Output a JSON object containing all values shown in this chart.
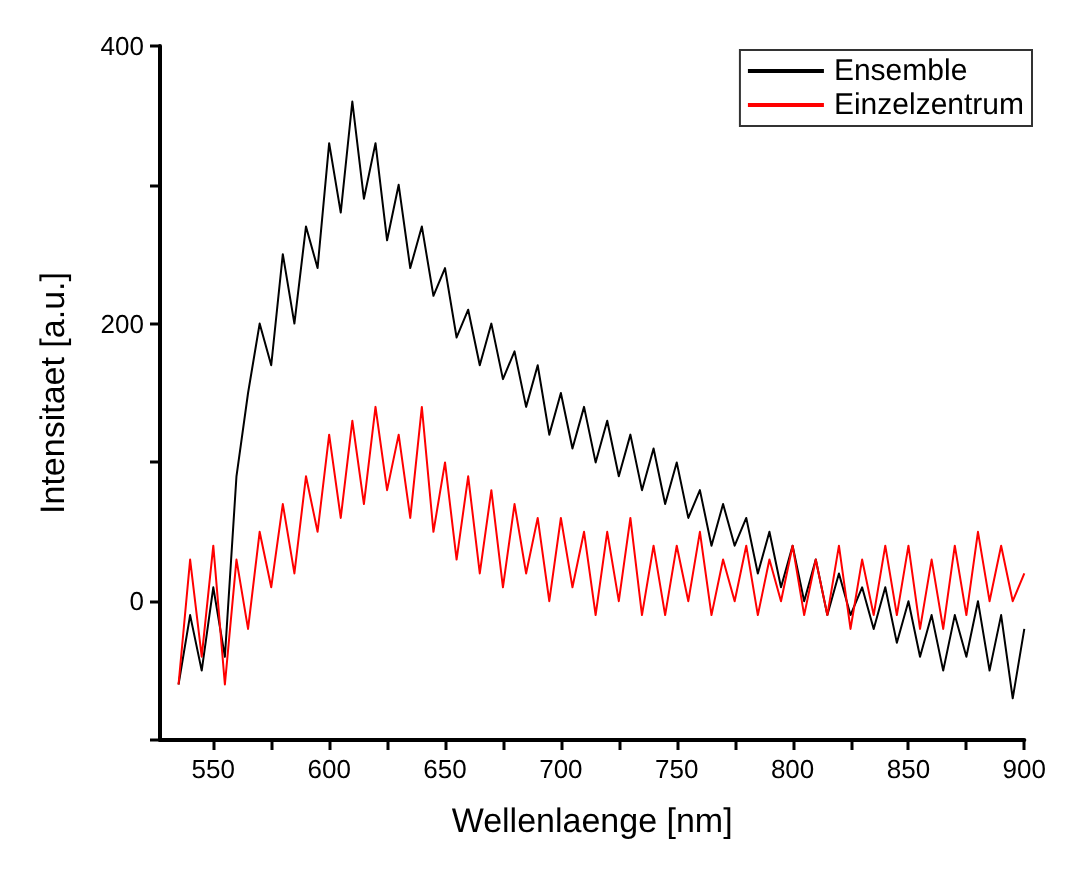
{
  "chart_data": {
    "type": "line",
    "xlabel": "Wellenlaenge [nm]",
    "ylabel": "Intensitaet [a.u.]",
    "x": [
      535,
      540,
      545,
      550,
      555,
      560,
      565,
      570,
      575,
      580,
      585,
      590,
      595,
      600,
      605,
      610,
      615,
      620,
      625,
      630,
      635,
      640,
      645,
      650,
      655,
      660,
      665,
      670,
      675,
      680,
      685,
      690,
      695,
      700,
      705,
      710,
      715,
      720,
      725,
      730,
      735,
      740,
      745,
      750,
      755,
      760,
      765,
      770,
      775,
      780,
      785,
      790,
      795,
      800,
      805,
      810,
      815,
      820,
      825,
      830,
      835,
      840,
      845,
      850,
      855,
      860,
      865,
      870,
      875,
      880,
      885,
      890,
      895,
      900
    ],
    "series": [
      {
        "name": "Ensemble",
        "color": "#000000",
        "values": [
          -60,
          -10,
          -50,
          10,
          -40,
          90,
          150,
          200,
          170,
          250,
          200,
          270,
          240,
          330,
          280,
          360,
          290,
          330,
          260,
          300,
          240,
          270,
          220,
          240,
          190,
          210,
          170,
          200,
          160,
          180,
          140,
          170,
          120,
          150,
          110,
          140,
          100,
          130,
          90,
          120,
          80,
          110,
          70,
          100,
          60,
          80,
          40,
          70,
          40,
          60,
          20,
          50,
          10,
          40,
          0,
          30,
          -10,
          20,
          -10,
          10,
          -20,
          10,
          -30,
          0,
          -40,
          -10,
          -50,
          -10,
          -40,
          0,
          -50,
          -10,
          -70,
          -20
        ]
      },
      {
        "name": "Einzelzentrum",
        "color": "#ff0000",
        "values": [
          -60,
          30,
          -40,
          40,
          -60,
          30,
          -20,
          50,
          10,
          70,
          20,
          90,
          50,
          120,
          60,
          130,
          70,
          140,
          80,
          120,
          60,
          140,
          50,
          100,
          30,
          90,
          20,
          80,
          10,
          70,
          20,
          60,
          0,
          60,
          10,
          50,
          -10,
          50,
          0,
          60,
          -10,
          40,
          -10,
          40,
          0,
          50,
          -10,
          30,
          0,
          40,
          -10,
          30,
          0,
          40,
          -10,
          30,
          -10,
          40,
          -20,
          30,
          -10,
          40,
          -10,
          40,
          -20,
          30,
          -20,
          40,
          -10,
          50,
          0,
          40,
          0,
          20
        ]
      }
    ],
    "xlim": [
      527,
      900
    ],
    "xticks": [
      550,
      {
        "value": 575,
        "label": null
      },
      600,
      {
        "value": 625,
        "label": null
      },
      650,
      {
        "value": 675,
        "label": null
      },
      700,
      {
        "value": 725,
        "label": null
      },
      750,
      {
        "value": 775,
        "label": null
      },
      800,
      {
        "value": 825,
        "label": null
      },
      850,
      {
        "value": 875,
        "label": null
      },
      900
    ],
    "ylim": [
      -100,
      400
    ],
    "yticks": [
      {
        "value": -100,
        "label": null
      },
      0,
      {
        "value": 100,
        "label": null
      },
      200,
      {
        "value": 300,
        "label": null
      },
      400
    ],
    "grid": false,
    "legend": "top right",
    "marker": "none",
    "line_style": "solid"
  }
}
